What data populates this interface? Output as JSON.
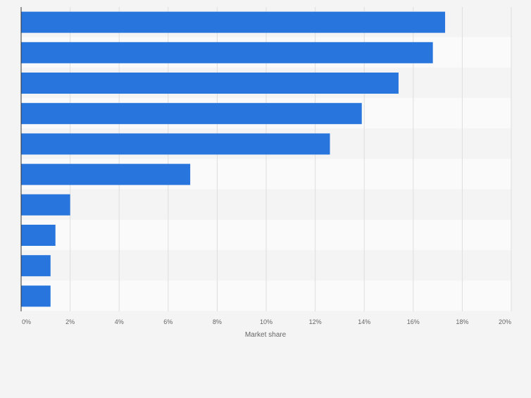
{
  "chart_data": {
    "type": "bar",
    "orientation": "horizontal",
    "title": "",
    "xlabel": "Market share",
    "ylabel": "",
    "categories": [
      "",
      "",
      "",
      "",
      "",
      "",
      "",
      "",
      "",
      ""
    ],
    "values": [
      17.3,
      16.8,
      15.4,
      13.9,
      12.6,
      6.9,
      2.0,
      1.4,
      1.2,
      1.2
    ],
    "xlim": [
      0,
      20
    ],
    "xticks": [
      0,
      2,
      4,
      6,
      8,
      10,
      12,
      14,
      16,
      18,
      20
    ],
    "xtick_labels": [
      "0%",
      "2%",
      "4%",
      "6%",
      "8%",
      "10%",
      "12%",
      "14%",
      "16%",
      "18%",
      "20%"
    ],
    "grid": true,
    "legend": "none",
    "colors": {
      "bar": "#2876dd",
      "band_light": "#fafafa",
      "band_dark": "#f4f4f4",
      "grid": "#dedede",
      "axis": "#333333",
      "tick_text": "#666666",
      "background": "#f4f4f4"
    }
  }
}
